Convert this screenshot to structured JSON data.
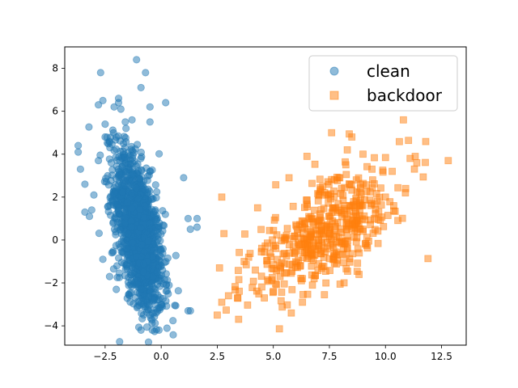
{
  "chart_data": {
    "type": "scatter",
    "title": "",
    "xlabel": "",
    "ylabel": "",
    "xlim": [
      -4.3,
      13.6
    ],
    "ylim": [
      -4.9,
      9.0
    ],
    "xticks": [
      -2.5,
      0.0,
      2.5,
      5.0,
      7.5,
      10.0,
      12.5
    ],
    "xtick_labels": [
      "−2.5",
      "0.0",
      "2.5",
      "5.0",
      "7.5",
      "10.0",
      "12.5"
    ],
    "yticks": [
      -4,
      -2,
      0,
      2,
      4,
      6,
      8
    ],
    "ytick_labels": [
      "−4",
      "−2",
      "0",
      "2",
      "4",
      "6",
      "8"
    ],
    "grid": false,
    "legend_position": "top-right",
    "series": [
      {
        "name": "clean",
        "marker": "circle",
        "color": "#1f77b4",
        "alpha": 0.5,
        "approx_count": 1500,
        "distribution": {
          "center": [
            -1.0,
            0.3
          ],
          "std": [
            0.55,
            1.9
          ],
          "corr": -0.55
        },
        "points": [
          [
            -3.7,
            4.4
          ],
          [
            -3.7,
            4.1
          ],
          [
            -3.6,
            3.3
          ],
          [
            -3.4,
            2.6
          ],
          [
            -3.4,
            1.3
          ],
          [
            -3.2,
            1.1
          ],
          [
            -2.7,
            7.8
          ],
          [
            -2.6,
            6.5
          ],
          [
            -2.8,
            6.3
          ],
          [
            -2.5,
            5.4
          ],
          [
            -2.1,
            6.2
          ],
          [
            -1.9,
            6.6
          ],
          [
            -1.9,
            6.4
          ],
          [
            -1.8,
            6.1
          ],
          [
            -1.6,
            5.5
          ],
          [
            -1.3,
            5.6
          ],
          [
            -1.1,
            8.4
          ],
          [
            -0.9,
            7.1
          ],
          [
            -0.7,
            7.8
          ],
          [
            -0.5,
            6.2
          ],
          [
            -0.5,
            5.5
          ],
          [
            0.2,
            6.4
          ],
          [
            1.0,
            2.9
          ],
          [
            1.2,
            1.0
          ],
          [
            1.3,
            0.5
          ],
          [
            1.6,
            1.0
          ],
          [
            1.6,
            0.6
          ],
          [
            1.3,
            -3.3
          ],
          [
            1.2,
            -3.3
          ],
          [
            -0.4,
            -4.2
          ],
          [
            -0.1,
            -4.2
          ],
          [
            -0.9,
            -4.2
          ],
          [
            -2.0,
            -2.3
          ],
          [
            -2.3,
            -1.7
          ],
          [
            -2.6,
            -0.9
          ],
          [
            -2.2,
            -0.6
          ],
          [
            -3.1,
            1.4
          ],
          [
            -3.0,
            2.1
          ],
          [
            -2.8,
            3.7
          ],
          [
            -2.5,
            4.8
          ]
        ]
      },
      {
        "name": "backdoor",
        "marker": "square",
        "color": "#ff7f0e",
        "alpha": 0.5,
        "approx_count": 500,
        "distribution": {
          "center": [
            7.3,
            0.3
          ],
          "std": [
            1.7,
            1.5
          ],
          "corr": 0.65
        },
        "points": [
          [
            2.5,
            -3.5
          ],
          [
            2.7,
            -2.9
          ],
          [
            2.7,
            2.0
          ],
          [
            2.8,
            0.3
          ],
          [
            2.6,
            -1.3
          ],
          [
            3.0,
            -2.6
          ],
          [
            3.4,
            -2.7
          ],
          [
            3.7,
            -1.0
          ],
          [
            3.9,
            -0.8
          ],
          [
            4.2,
            -1.4
          ],
          [
            4.3,
            1.5
          ],
          [
            4.6,
            -2.7
          ],
          [
            5.0,
            -2.4
          ],
          [
            5.3,
            -1.7
          ],
          [
            5.5,
            0.0
          ],
          [
            5.7,
            2.9
          ],
          [
            5.8,
            -3.4
          ],
          [
            6.3,
            -2.9
          ],
          [
            6.5,
            3.9
          ],
          [
            7.6,
            5.0
          ],
          [
            8.3,
            4.2
          ],
          [
            9.0,
            4.0
          ],
          [
            9.4,
            3.3
          ],
          [
            10.3,
            3.2
          ],
          [
            10.8,
            5.6
          ],
          [
            11.1,
            3.8
          ],
          [
            11.4,
            3.6
          ],
          [
            12.8,
            3.7
          ],
          [
            10.9,
            2.4
          ],
          [
            8.5,
            4.8
          ],
          [
            8.7,
            2.8
          ],
          [
            7.2,
            2.5
          ],
          [
            7.9,
            -0.7
          ],
          [
            9.0,
            0.5
          ],
          [
            6.3,
            -1.8
          ],
          [
            10.0,
            2.0
          ],
          [
            9.5,
            1.0
          ],
          [
            6.8,
            0.8
          ],
          [
            8.2,
            1.6
          ],
          [
            7.0,
            -0.3
          ]
        ]
      }
    ]
  }
}
